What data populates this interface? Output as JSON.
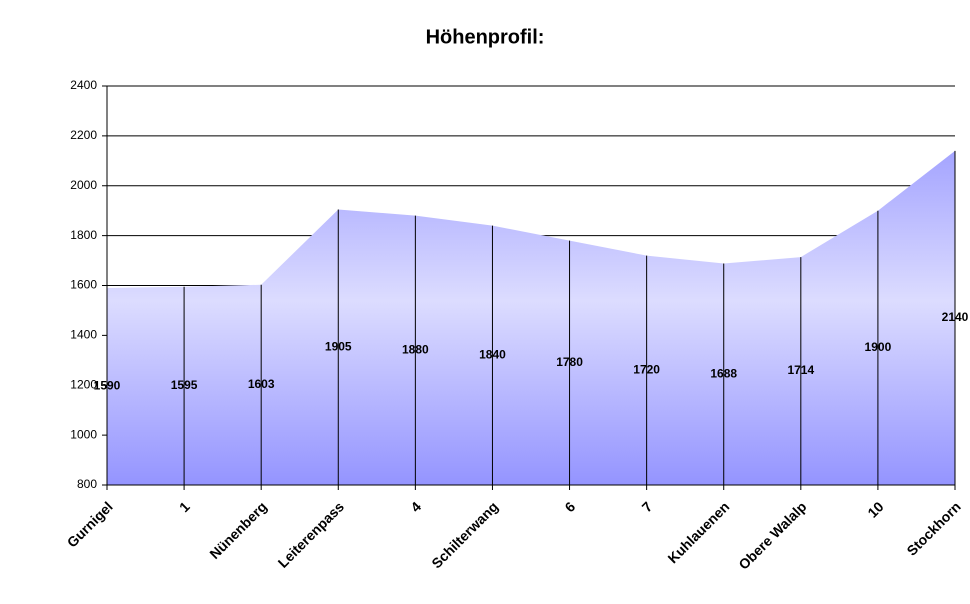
{
  "chart_data": {
    "type": "area",
    "title": "Höhenprofil:",
    "categories": [
      "Gurnigel",
      "1",
      "Nünenberg",
      "Leiterenpass",
      "4",
      "Schilterwang",
      "6",
      "7",
      "Kuhlauenen",
      "Obere Walalp",
      "10",
      "Stockhorn"
    ],
    "values": [
      1590,
      1595,
      1603,
      1905,
      1880,
      1840,
      1780,
      1720,
      1688,
      1714,
      1900,
      2140
    ],
    "color": "#9c9cff",
    "ylim": [
      800,
      2400
    ],
    "yticks": [
      800,
      1000,
      1200,
      1400,
      1600,
      1800,
      2000,
      2200,
      2400
    ],
    "grid": true
  }
}
